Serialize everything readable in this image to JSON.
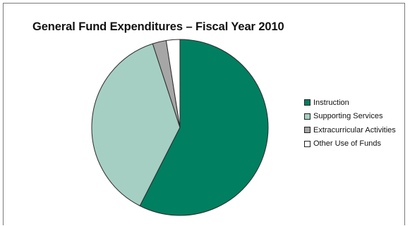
{
  "chart_data": {
    "type": "pie",
    "title": "General Fund Expenditures – Fiscal Year 2010",
    "slices": [
      {
        "label": "Instruction",
        "value": 57.5,
        "color": "#008060"
      },
      {
        "label": "Supporting Services",
        "value": 37.5,
        "color": "#a6cfc3"
      },
      {
        "label": "Extracurricular Activities",
        "value": 2.5,
        "color": "#a6a6a6"
      },
      {
        "label": "Other Use of Funds",
        "value": 2.5,
        "color": "#ffffff"
      }
    ],
    "legend_position": "right"
  }
}
